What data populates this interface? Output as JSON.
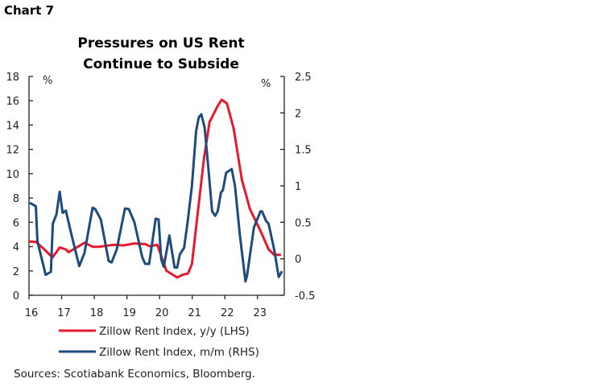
{
  "header": {
    "chart_label": "Chart 7"
  },
  "chart_data": {
    "type": "line",
    "title": [
      "Pressures on US Rent",
      "Continue to Subside"
    ],
    "left_unit": "%",
    "right_unit": "%",
    "x_ticks": [
      "16",
      "17",
      "18",
      "19",
      "20",
      "21",
      "22",
      "23"
    ],
    "x_tick_values": [
      16,
      17,
      18,
      19,
      20,
      21,
      22,
      23
    ],
    "xlim": [
      16,
      23.82
    ],
    "left_ticks": [
      "0",
      "2",
      "4",
      "6",
      "8",
      "10",
      "12",
      "14",
      "16",
      "18"
    ],
    "left_ylim": [
      0,
      18
    ],
    "right_ticks": [
      "-0.5",
      "0",
      "0.5",
      "1",
      "1.5",
      "2",
      "2.5"
    ],
    "right_ylim": [
      -0.5,
      2.5
    ],
    "grid": false,
    "legend_placement": "bottom",
    "colors": {
      "yy": "#e8192c",
      "mm": "#1f4a7c"
    },
    "series": [
      {
        "name": "Zillow Rent Index, y/y (LHS)",
        "axis": "left",
        "points": [
          [
            16.0,
            4.43
          ],
          [
            16.21,
            4.39
          ],
          [
            16.43,
            3.88
          ],
          [
            16.72,
            3.11
          ],
          [
            16.94,
            3.93
          ],
          [
            17.13,
            3.77
          ],
          [
            17.21,
            3.55
          ],
          [
            17.5,
            3.99
          ],
          [
            17.7,
            4.32
          ],
          [
            17.95,
            3.99
          ],
          [
            18.16,
            3.99
          ],
          [
            18.57,
            4.15
          ],
          [
            18.9,
            4.1
          ],
          [
            19.23,
            4.26
          ],
          [
            19.56,
            4.21
          ],
          [
            19.7,
            4.04
          ],
          [
            19.93,
            4.15
          ],
          [
            20.21,
            2.01
          ],
          [
            20.54,
            1.46
          ],
          [
            20.7,
            1.68
          ],
          [
            20.87,
            1.79
          ],
          [
            20.99,
            2.56
          ],
          [
            21.2,
            7.52
          ],
          [
            21.36,
            11.27
          ],
          [
            21.53,
            14.25
          ],
          [
            21.78,
            15.57
          ],
          [
            21.9,
            16.08
          ],
          [
            22.06,
            15.79
          ],
          [
            22.27,
            13.7
          ],
          [
            22.52,
            9.51
          ],
          [
            22.77,
            7.08
          ],
          [
            23.09,
            5.31
          ],
          [
            23.34,
            3.77
          ],
          [
            23.51,
            3.33
          ],
          [
            23.72,
            3.33
          ]
        ]
      },
      {
        "name": "Zillow Rent Index, m/m (RHS)",
        "axis": "right",
        "points": [
          [
            16.0,
            0.76
          ],
          [
            16.06,
            0.76
          ],
          [
            16.21,
            0.72
          ],
          [
            16.26,
            0.24
          ],
          [
            16.51,
            -0.22
          ],
          [
            16.67,
            -0.18
          ],
          [
            16.73,
            0.48
          ],
          [
            16.84,
            0.61
          ],
          [
            16.94,
            0.92
          ],
          [
            17.03,
            0.63
          ],
          [
            17.13,
            0.66
          ],
          [
            17.29,
            0.35
          ],
          [
            17.54,
            -0.1
          ],
          [
            17.7,
            0.08
          ],
          [
            17.95,
            0.7
          ],
          [
            18.03,
            0.68
          ],
          [
            18.2,
            0.54
          ],
          [
            18.44,
            -0.03
          ],
          [
            18.53,
            -0.05
          ],
          [
            18.69,
            0.13
          ],
          [
            18.94,
            0.69
          ],
          [
            19.06,
            0.68
          ],
          [
            19.23,
            0.5
          ],
          [
            19.47,
            0.02
          ],
          [
            19.56,
            -0.07
          ],
          [
            19.68,
            -0.07
          ],
          [
            19.88,
            0.55
          ],
          [
            19.97,
            0.54
          ],
          [
            20.05,
            -0.01
          ],
          [
            20.13,
            -0.11
          ],
          [
            20.3,
            0.32
          ],
          [
            20.46,
            -0.12
          ],
          [
            20.54,
            -0.12
          ],
          [
            20.62,
            0.06
          ],
          [
            20.75,
            0.15
          ],
          [
            20.87,
            0.54
          ],
          [
            20.99,
            1.0
          ],
          [
            21.12,
            1.75
          ],
          [
            21.2,
            1.94
          ],
          [
            21.28,
            1.98
          ],
          [
            21.38,
            1.8
          ],
          [
            21.49,
            1.27
          ],
          [
            21.61,
            0.65
          ],
          [
            21.7,
            0.59
          ],
          [
            21.78,
            0.65
          ],
          [
            21.88,
            0.91
          ],
          [
            21.94,
            0.94
          ],
          [
            22.04,
            1.18
          ],
          [
            22.21,
            1.23
          ],
          [
            22.31,
            1.0
          ],
          [
            22.46,
            0.32
          ],
          [
            22.63,
            -0.31
          ],
          [
            22.68,
            -0.23
          ],
          [
            22.89,
            0.43
          ],
          [
            23.09,
            0.65
          ],
          [
            23.14,
            0.65
          ],
          [
            23.26,
            0.52
          ],
          [
            23.34,
            0.48
          ],
          [
            23.51,
            0.13
          ],
          [
            23.65,
            -0.25
          ],
          [
            23.75,
            -0.17
          ]
        ]
      }
    ],
    "source": "Sources: Scotiabank Economics, Bloomberg."
  }
}
